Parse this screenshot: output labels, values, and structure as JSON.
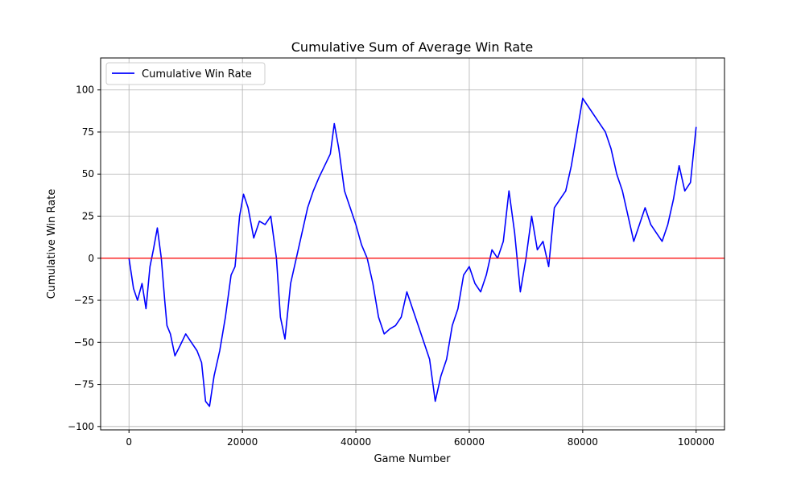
{
  "chart_data": {
    "type": "line",
    "title": "Cumulative Sum of Average Win Rate",
    "xlabel": "Game Number",
    "ylabel": "Cumulative Win Rate",
    "xlim": [
      -5000,
      105000
    ],
    "ylim": [
      -102,
      119
    ],
    "xticks": [
      0,
      20000,
      40000,
      60000,
      80000,
      100000
    ],
    "yticks": [
      -100,
      -75,
      -50,
      -25,
      0,
      25,
      50,
      75,
      100
    ],
    "grid": true,
    "legend": {
      "position": "top-left",
      "entries": [
        "Cumulative Win Rate"
      ]
    },
    "reference_line": {
      "y": 0,
      "color": "#ff0000"
    },
    "series": [
      {
        "name": "Cumulative Win Rate",
        "color": "#0000ff",
        "x": [
          0,
          800,
          1500,
          2300,
          3000,
          3700,
          4300,
          5000,
          5700,
          6300,
          6700,
          7300,
          8100,
          9000,
          10000,
          11000,
          12000,
          12800,
          13500,
          14200,
          15000,
          16000,
          17000,
          18000,
          18700,
          19500,
          20200,
          21000,
          22000,
          23000,
          24000,
          25000,
          26000,
          26700,
          27500,
          28500,
          29500,
          30500,
          31500,
          32500,
          33500,
          34500,
          35500,
          36200,
          37000,
          38000,
          39000,
          40000,
          41000,
          42000,
          43000,
          44000,
          45000,
          46000,
          47000,
          48000,
          49000,
          50000,
          51000,
          52000,
          53000,
          54000,
          55000,
          56000,
          57000,
          58000,
          59000,
          60000,
          61000,
          62000,
          63000,
          64000,
          65000,
          66000,
          67000,
          68000,
          69000,
          70000,
          71000,
          72000,
          73000,
          74000,
          75000,
          76000,
          77000,
          78000,
          79000,
          80000,
          81000,
          82000,
          83000,
          84000,
          85000,
          86000,
          87000,
          88000,
          89000,
          90000,
          91000,
          92000,
          93000,
          94000,
          95000,
          96000,
          97000,
          98000,
          99000,
          100000
        ],
        "y": [
          0,
          -18,
          -25,
          -15,
          -30,
          -5,
          5,
          18,
          0,
          -25,
          -40,
          -45,
          -58,
          -52,
          -45,
          -50,
          -55,
          -62,
          -85,
          -88,
          -70,
          -55,
          -35,
          -10,
          -5,
          25,
          38,
          30,
          12,
          22,
          20,
          25,
          0,
          -35,
          -48,
          -15,
          0,
          15,
          30,
          40,
          48,
          55,
          62,
          80,
          65,
          40,
          30,
          20,
          8,
          0,
          -15,
          -35,
          -45,
          -42,
          -40,
          -35,
          -20,
          -30,
          -40,
          -50,
          -60,
          -85,
          -70,
          -60,
          -40,
          -30,
          -10,
          -5,
          -15,
          -20,
          -10,
          5,
          0,
          10,
          40,
          15,
          -20,
          0,
          25,
          5,
          10,
          -5,
          30,
          35,
          40,
          55,
          75,
          95,
          90,
          85,
          80,
          75,
          65,
          50,
          40,
          25,
          10,
          20,
          30,
          20,
          15,
          10,
          20,
          35,
          55,
          40,
          45,
          78
        ]
      }
    ]
  }
}
